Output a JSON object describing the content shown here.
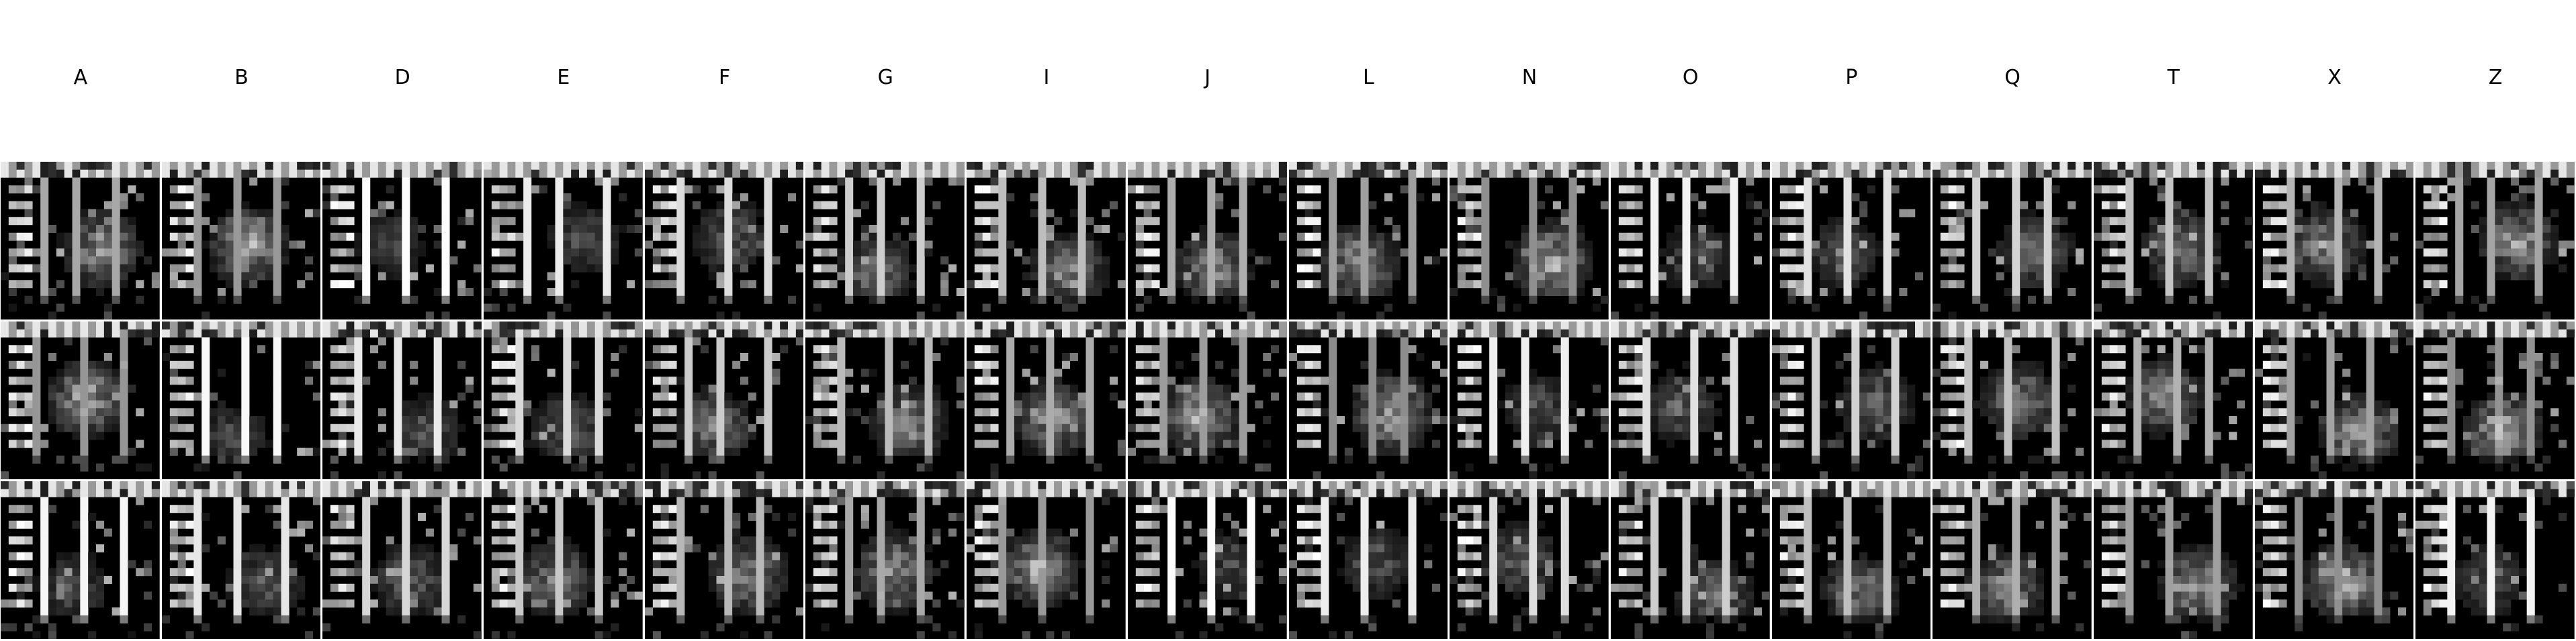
{
  "columns": [
    "A",
    "B",
    "D",
    "E",
    "F",
    "G",
    "I",
    "J",
    "L",
    "N",
    "O",
    "P",
    "Q",
    "T",
    "X",
    "Z"
  ],
  "rows": 3,
  "colors": {
    "background": "#ffffff",
    "tile_background": "#000000",
    "pixel_bright": "#ffffff",
    "separator": "#bfbfbf"
  }
}
